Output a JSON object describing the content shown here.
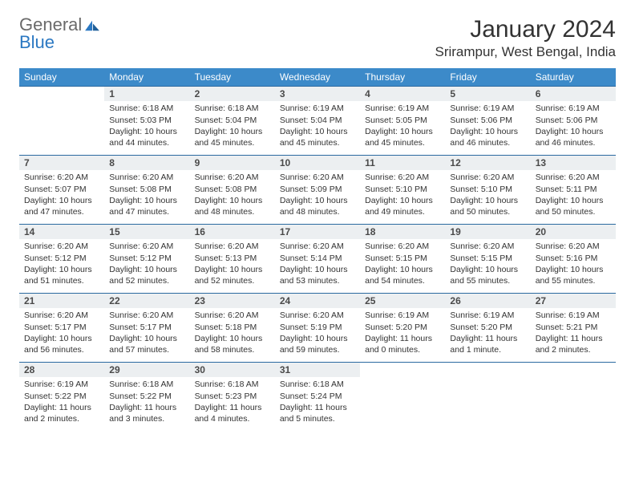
{
  "brand": {
    "general": "General",
    "blue": "Blue"
  },
  "title": "January 2024",
  "location": "Srirampur, West Bengal, India",
  "colors": {
    "header_bg": "#3c8ac9",
    "header_text": "#ffffff",
    "rule": "#2b6aa0",
    "daynum_bg": "#eceff1",
    "body_text": "#333333",
    "logo_gray": "#6a6a6a",
    "logo_blue": "#2b78c2"
  },
  "weekdays": [
    "Sunday",
    "Monday",
    "Tuesday",
    "Wednesday",
    "Thursday",
    "Friday",
    "Saturday"
  ],
  "weeks": [
    [
      null,
      {
        "n": "1",
        "sunrise": "Sunrise: 6:18 AM",
        "sunset": "Sunset: 5:03 PM",
        "day": "Daylight: 10 hours and 44 minutes."
      },
      {
        "n": "2",
        "sunrise": "Sunrise: 6:18 AM",
        "sunset": "Sunset: 5:04 PM",
        "day": "Daylight: 10 hours and 45 minutes."
      },
      {
        "n": "3",
        "sunrise": "Sunrise: 6:19 AM",
        "sunset": "Sunset: 5:04 PM",
        "day": "Daylight: 10 hours and 45 minutes."
      },
      {
        "n": "4",
        "sunrise": "Sunrise: 6:19 AM",
        "sunset": "Sunset: 5:05 PM",
        "day": "Daylight: 10 hours and 45 minutes."
      },
      {
        "n": "5",
        "sunrise": "Sunrise: 6:19 AM",
        "sunset": "Sunset: 5:06 PM",
        "day": "Daylight: 10 hours and 46 minutes."
      },
      {
        "n": "6",
        "sunrise": "Sunrise: 6:19 AM",
        "sunset": "Sunset: 5:06 PM",
        "day": "Daylight: 10 hours and 46 minutes."
      }
    ],
    [
      {
        "n": "7",
        "sunrise": "Sunrise: 6:20 AM",
        "sunset": "Sunset: 5:07 PM",
        "day": "Daylight: 10 hours and 47 minutes."
      },
      {
        "n": "8",
        "sunrise": "Sunrise: 6:20 AM",
        "sunset": "Sunset: 5:08 PM",
        "day": "Daylight: 10 hours and 47 minutes."
      },
      {
        "n": "9",
        "sunrise": "Sunrise: 6:20 AM",
        "sunset": "Sunset: 5:08 PM",
        "day": "Daylight: 10 hours and 48 minutes."
      },
      {
        "n": "10",
        "sunrise": "Sunrise: 6:20 AM",
        "sunset": "Sunset: 5:09 PM",
        "day": "Daylight: 10 hours and 48 minutes."
      },
      {
        "n": "11",
        "sunrise": "Sunrise: 6:20 AM",
        "sunset": "Sunset: 5:10 PM",
        "day": "Daylight: 10 hours and 49 minutes."
      },
      {
        "n": "12",
        "sunrise": "Sunrise: 6:20 AM",
        "sunset": "Sunset: 5:10 PM",
        "day": "Daylight: 10 hours and 50 minutes."
      },
      {
        "n": "13",
        "sunrise": "Sunrise: 6:20 AM",
        "sunset": "Sunset: 5:11 PM",
        "day": "Daylight: 10 hours and 50 minutes."
      }
    ],
    [
      {
        "n": "14",
        "sunrise": "Sunrise: 6:20 AM",
        "sunset": "Sunset: 5:12 PM",
        "day": "Daylight: 10 hours and 51 minutes."
      },
      {
        "n": "15",
        "sunrise": "Sunrise: 6:20 AM",
        "sunset": "Sunset: 5:12 PM",
        "day": "Daylight: 10 hours and 52 minutes."
      },
      {
        "n": "16",
        "sunrise": "Sunrise: 6:20 AM",
        "sunset": "Sunset: 5:13 PM",
        "day": "Daylight: 10 hours and 52 minutes."
      },
      {
        "n": "17",
        "sunrise": "Sunrise: 6:20 AM",
        "sunset": "Sunset: 5:14 PM",
        "day": "Daylight: 10 hours and 53 minutes."
      },
      {
        "n": "18",
        "sunrise": "Sunrise: 6:20 AM",
        "sunset": "Sunset: 5:15 PM",
        "day": "Daylight: 10 hours and 54 minutes."
      },
      {
        "n": "19",
        "sunrise": "Sunrise: 6:20 AM",
        "sunset": "Sunset: 5:15 PM",
        "day": "Daylight: 10 hours and 55 minutes."
      },
      {
        "n": "20",
        "sunrise": "Sunrise: 6:20 AM",
        "sunset": "Sunset: 5:16 PM",
        "day": "Daylight: 10 hours and 55 minutes."
      }
    ],
    [
      {
        "n": "21",
        "sunrise": "Sunrise: 6:20 AM",
        "sunset": "Sunset: 5:17 PM",
        "day": "Daylight: 10 hours and 56 minutes."
      },
      {
        "n": "22",
        "sunrise": "Sunrise: 6:20 AM",
        "sunset": "Sunset: 5:17 PM",
        "day": "Daylight: 10 hours and 57 minutes."
      },
      {
        "n": "23",
        "sunrise": "Sunrise: 6:20 AM",
        "sunset": "Sunset: 5:18 PM",
        "day": "Daylight: 10 hours and 58 minutes."
      },
      {
        "n": "24",
        "sunrise": "Sunrise: 6:20 AM",
        "sunset": "Sunset: 5:19 PM",
        "day": "Daylight: 10 hours and 59 minutes."
      },
      {
        "n": "25",
        "sunrise": "Sunrise: 6:19 AM",
        "sunset": "Sunset: 5:20 PM",
        "day": "Daylight: 11 hours and 0 minutes."
      },
      {
        "n": "26",
        "sunrise": "Sunrise: 6:19 AM",
        "sunset": "Sunset: 5:20 PM",
        "day": "Daylight: 11 hours and 1 minute."
      },
      {
        "n": "27",
        "sunrise": "Sunrise: 6:19 AM",
        "sunset": "Sunset: 5:21 PM",
        "day": "Daylight: 11 hours and 2 minutes."
      }
    ],
    [
      {
        "n": "28",
        "sunrise": "Sunrise: 6:19 AM",
        "sunset": "Sunset: 5:22 PM",
        "day": "Daylight: 11 hours and 2 minutes."
      },
      {
        "n": "29",
        "sunrise": "Sunrise: 6:18 AM",
        "sunset": "Sunset: 5:22 PM",
        "day": "Daylight: 11 hours and 3 minutes."
      },
      {
        "n": "30",
        "sunrise": "Sunrise: 6:18 AM",
        "sunset": "Sunset: 5:23 PM",
        "day": "Daylight: 11 hours and 4 minutes."
      },
      {
        "n": "31",
        "sunrise": "Sunrise: 6:18 AM",
        "sunset": "Sunset: 5:24 PM",
        "day": "Daylight: 11 hours and 5 minutes."
      },
      null,
      null,
      null
    ]
  ]
}
